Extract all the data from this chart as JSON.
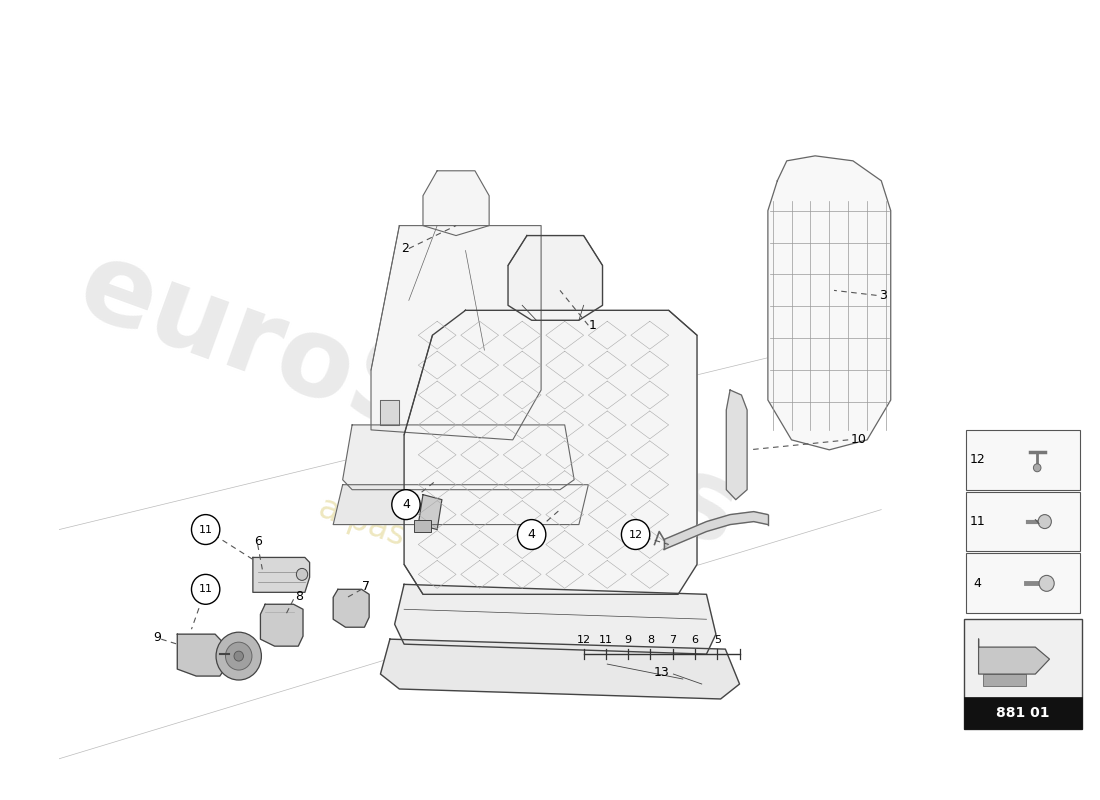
{
  "bg_color": "#ffffff",
  "part_number": "881 01",
  "fig_width": 11.0,
  "fig_height": 8.0,
  "line_color": "#444444",
  "light_line": "#888888",
  "label_fontsize": 9,
  "watermark_color1": "#cccccc",
  "watermark_color2": "#e8d880",
  "seat2_outline_color": "#666666",
  "seat1_outline_color": "#444444"
}
